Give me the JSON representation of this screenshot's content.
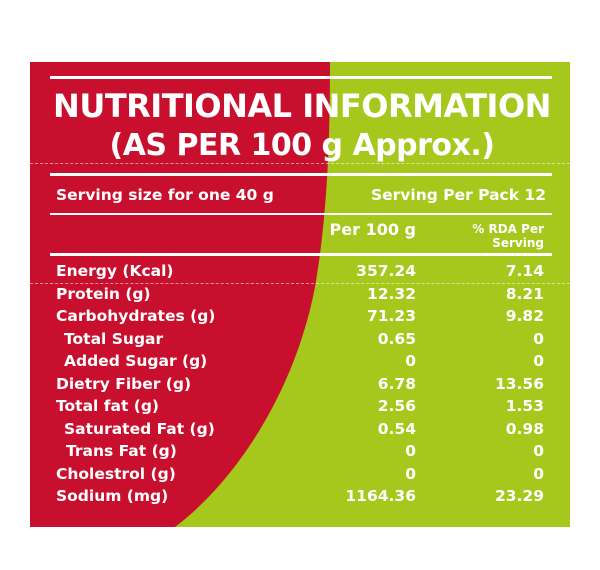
{
  "title": {
    "line1": "NUTRITIONAL INFORMATION",
    "line2": "(AS PER 100 g Approx.)"
  },
  "serving": {
    "size": "Serving size for one 40 g",
    "per_pack": "Serving Per Pack 12"
  },
  "columns": {
    "per100": "Per 100 g",
    "rda_line1": "% RDA Per",
    "rda_line2": "Serving"
  },
  "rows": [
    {
      "label": "Energy (Kcal)",
      "per100": "357.24",
      "rda": "7.14"
    },
    {
      "label": "Protein (g)",
      "per100": "12.32",
      "rda": "8.21"
    },
    {
      "label": "Carbohydrates (g)",
      "per100": "71.23",
      "rda": "9.82"
    },
    {
      "label": "Total Sugar",
      "per100": "0.65",
      "rda": "0"
    },
    {
      "label": "Added Sugar (g)",
      "per100": "0",
      "rda": "0"
    },
    {
      "label": "Dietry Fiber (g)",
      "per100": "6.78",
      "rda": "13.56"
    },
    {
      "label": "Total fat (g)",
      "per100": "2.56",
      "rda": "1.53"
    },
    {
      "label": "Saturated Fat (g)",
      "per100": "0.54",
      "rda": "0.98"
    },
    {
      "label": "Trans Fat (g)",
      "per100": "0",
      "rda": "0"
    },
    {
      "label": "Cholestrol (g)",
      "per100": "0",
      "rda": "0"
    },
    {
      "label": "Sodium (mg)",
      "per100": "1164.36",
      "rda": "23.29"
    }
  ],
  "colors": {
    "red": "#c8102e",
    "green": "#a6c81d",
    "text": "#ffffff"
  }
}
